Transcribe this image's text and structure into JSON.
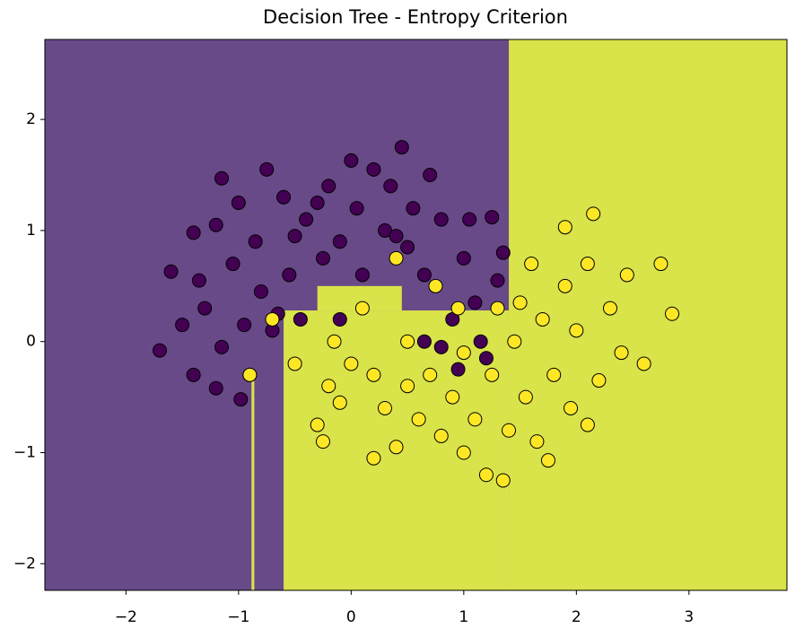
{
  "chart_data": {
    "type": "scatter",
    "title": "Decision Tree - Entropy Criterion",
    "xlim": [
      -2.72,
      3.87
    ],
    "ylim": [
      -2.24,
      2.72
    ],
    "xticks": [
      {
        "value": -2,
        "label": "−2"
      },
      {
        "value": -1,
        "label": "−1"
      },
      0,
      1,
      2,
      3
    ],
    "yticks": [
      {
        "value": -2,
        "label": "−2"
      },
      {
        "value": -1,
        "label": "−1"
      },
      0,
      1,
      2
    ],
    "background": "#684a88",
    "regions": [
      {
        "x": [
          -0.6,
          1.4
        ],
        "y": [
          -2.24,
          0.28
        ],
        "color": "#d9e34a"
      },
      {
        "x": [
          -0.3,
          0.45
        ],
        "y": [
          0.28,
          0.5
        ],
        "color": "#d9e34a"
      },
      {
        "x": [
          1.4,
          3.87
        ],
        "y": [
          -2.24,
          2.72
        ],
        "color": "#d9e34a"
      },
      {
        "x": [
          -0.885,
          -0.86
        ],
        "y": [
          -2.24,
          -0.35
        ],
        "color": "#d9e34a"
      }
    ],
    "series": [
      {
        "color": "#440154",
        "x": [
          -1.7,
          -1.6,
          -1.5,
          -1.4,
          -1.35,
          -1.3,
          -1.2,
          -1.15,
          -1.4,
          -1.05,
          -1.0,
          -0.95,
          -0.9,
          -1.2,
          -0.98,
          -0.85,
          -0.8,
          -1.15,
          -0.75,
          -0.7,
          -0.6,
          -0.55,
          -0.5,
          -0.45,
          -0.4,
          -0.3,
          -0.25,
          -0.2,
          -0.1,
          0.0,
          0.05,
          0.1,
          0.2,
          0.3,
          0.35,
          0.45,
          0.5,
          0.55,
          0.65,
          0.7,
          0.8,
          0.9,
          1.0,
          1.05,
          1.1,
          1.25,
          1.3,
          0.95,
          0.8,
          1.2,
          0.65,
          -0.1,
          1.35,
          0.4,
          -0.65,
          1.15
        ],
        "values": [
          -0.08,
          0.63,
          0.15,
          0.98,
          0.55,
          0.3,
          1.05,
          -0.05,
          -0.3,
          0.7,
          1.25,
          0.15,
          -0.3,
          -0.42,
          -0.52,
          0.9,
          0.45,
          1.47,
          1.55,
          0.1,
          1.3,
          0.6,
          0.95,
          0.2,
          1.1,
          1.25,
          0.75,
          1.4,
          0.9,
          1.63,
          1.2,
          0.6,
          1.55,
          1.0,
          1.4,
          1.75,
          0.85,
          1.2,
          0.6,
          1.5,
          1.1,
          0.2,
          0.75,
          1.1,
          0.35,
          1.12,
          0.55,
          -0.25,
          -0.05,
          -0.15,
          0.0,
          0.2,
          0.8,
          0.95,
          0.25,
          0.0
        ]
      },
      {
        "color": "#fde725",
        "x": [
          -0.9,
          -0.7,
          -0.5,
          -0.3,
          -0.25,
          -0.2,
          -0.15,
          -0.1,
          0.0,
          0.1,
          0.2,
          0.2,
          0.3,
          0.4,
          0.4,
          0.5,
          0.5,
          0.6,
          0.7,
          0.75,
          0.8,
          0.9,
          1.0,
          1.0,
          1.1,
          1.2,
          1.25,
          1.35,
          1.4,
          1.45,
          1.5,
          1.55,
          1.6,
          1.65,
          1.7,
          1.75,
          1.8,
          1.9,
          1.9,
          1.95,
          2.0,
          2.1,
          2.15,
          2.2,
          2.3,
          2.4,
          2.45,
          2.6,
          2.75,
          2.85,
          2.1,
          1.3,
          0.95
        ],
        "values": [
          -0.3,
          0.2,
          -0.2,
          -0.75,
          -0.9,
          -0.4,
          0.0,
          -0.55,
          -0.2,
          0.3,
          -0.3,
          -1.05,
          -0.6,
          0.75,
          -0.95,
          0.0,
          -0.4,
          -0.7,
          -0.3,
          0.5,
          -0.85,
          -0.5,
          -1.0,
          -0.1,
          -0.7,
          -1.2,
          -0.3,
          -1.25,
          -0.8,
          0.0,
          0.35,
          -0.5,
          0.7,
          -0.9,
          0.2,
          -1.07,
          -0.3,
          0.5,
          1.03,
          -0.6,
          0.1,
          0.7,
          1.15,
          -0.35,
          0.3,
          -0.1,
          0.6,
          -0.2,
          0.7,
          0.25,
          -0.75,
          0.3,
          0.3
        ]
      }
    ]
  }
}
